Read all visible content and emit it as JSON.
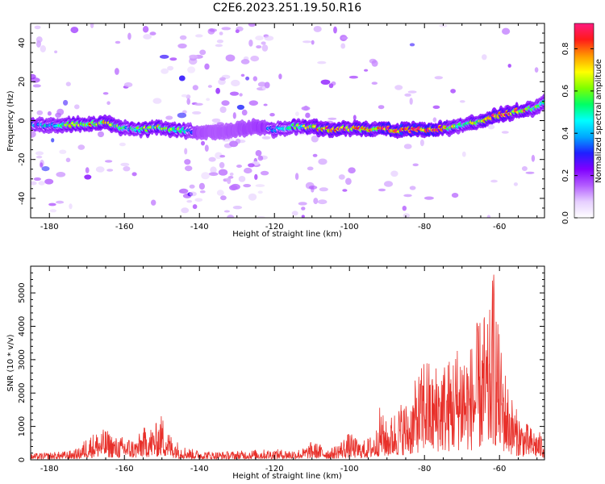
{
  "figure_title": "C2E6.2023.251.19.50.R16",
  "chart_data": [
    {
      "type": "heatmap",
      "xlabel": "Height of straight line (km)",
      "ylabel": "Frequency (Hz)",
      "xlim": [
        -185,
        -48
      ],
      "ylim": [
        -50,
        50
      ],
      "xticks": [
        -180,
        -160,
        -140,
        -120,
        -100,
        -80,
        -60
      ],
      "xtick_labels": [
        "-180",
        "-160",
        "-140",
        "-120",
        "-100",
        "-80",
        "-60"
      ],
      "yticks": [
        -40,
        -20,
        0,
        20,
        40
      ],
      "ytick_labels": [
        "-40",
        "-20",
        "0",
        "20",
        "40"
      ],
      "grid": false,
      "colorbar": {
        "label": "Normalized spectral amplitude",
        "range": [
          0.0,
          0.92
        ],
        "ticks": [
          0.0,
          0.2,
          0.4,
          0.6,
          0.8
        ],
        "tick_labels": [
          "0.0",
          "0.2",
          "0.4",
          "0.6",
          "0.8"
        ],
        "colors": [
          "#ffffff",
          "#e6cfff",
          "#b35cff",
          "#8000ff",
          "#1f20ff",
          "#00a8ff",
          "#00ffff",
          "#00ff66",
          "#7fff00",
          "#ffff00",
          "#ff9900",
          "#ff1a1a",
          "#ff1a80"
        ]
      },
      "ridge_x": [
        -185,
        -180,
        -175,
        -170,
        -165,
        -160,
        -155,
        -150,
        -145,
        -140,
        -135,
        -130,
        -125,
        -120,
        -115,
        -110,
        -105,
        -100,
        -95,
        -90,
        -85,
        -80,
        -75,
        -70,
        -65,
        -60,
        -55,
        -50,
        -48
      ],
      "ridge_freq": [
        -2.0,
        -2.5,
        -2.0,
        -1.5,
        -1.0,
        -4.0,
        -4.5,
        -3.5,
        -5.0,
        -6.0,
        -6.0,
        -4.5,
        -3.5,
        -4.5,
        -3.0,
        -3.5,
        -4.5,
        -4.0,
        -4.5,
        -4.5,
        -5.0,
        -4.5,
        -4.0,
        -2.5,
        -0.5,
        3.0,
        5.0,
        6.5,
        9.0
      ],
      "ridge_peak_amplitude": [
        0.3,
        0.35,
        0.5,
        0.6,
        0.55,
        0.4,
        0.45,
        0.5,
        0.45,
        0.1,
        0.05,
        0.1,
        0.2,
        0.3,
        0.4,
        0.5,
        0.7,
        0.55,
        0.6,
        0.65,
        0.8,
        0.7,
        0.6,
        0.45,
        0.5,
        0.7,
        0.65,
        0.5,
        0.45
      ]
    },
    {
      "type": "line",
      "xlabel": "Height of straight line (km)",
      "ylabel": "SNR (10 * v/v)",
      "xlim": [
        -185,
        -48
      ],
      "ylim": [
        0,
        5800
      ],
      "xticks": [
        -180,
        -160,
        -140,
        -120,
        -100,
        -80,
        -60
      ],
      "xtick_labels": [
        "-180",
        "-160",
        "-140",
        "-120",
        "-100",
        "-80",
        "-60"
      ],
      "yticks": [
        0,
        1000,
        2000,
        3000,
        4000,
        5000
      ],
      "ytick_labels": [
        "0",
        "1000",
        "2000",
        "3000",
        "4000",
        "5000"
      ],
      "grid": false,
      "series": [
        {
          "color": "#e8302a",
          "x": [
            -185,
            -180,
            -175,
            -172,
            -170,
            -167,
            -165,
            -162,
            -160,
            -157,
            -155,
            -152,
            -150,
            -148,
            -145,
            -142,
            -140,
            -135,
            -130,
            -125,
            -120,
            -115,
            -112,
            -110,
            -107,
            -105,
            -102,
            -100,
            -97,
            -95,
            -93,
            -92,
            -90,
            -88,
            -86,
            -84,
            -82,
            -80.5,
            -80,
            -78,
            -76,
            -74,
            -72,
            -70,
            -68,
            -66,
            -64,
            -63,
            -62,
            -61.5,
            -61,
            -60,
            -58,
            -56,
            -54,
            -52,
            -50,
            -48
          ],
          "values": [
            180,
            220,
            260,
            350,
            700,
            850,
            900,
            650,
            700,
            600,
            950,
            1000,
            1350,
            800,
            450,
            320,
            280,
            240,
            260,
            300,
            310,
            300,
            350,
            550,
            420,
            320,
            600,
            800,
            520,
            650,
            850,
            1550,
            1100,
            1450,
            1750,
            1700,
            2500,
            2800,
            3400,
            2600,
            3100,
            2900,
            3300,
            3700,
            3300,
            4000,
            4400,
            3900,
            5200,
            5800,
            4900,
            3600,
            2400,
            1600,
            1200,
            1000,
            850,
            750
          ]
        }
      ]
    }
  ]
}
